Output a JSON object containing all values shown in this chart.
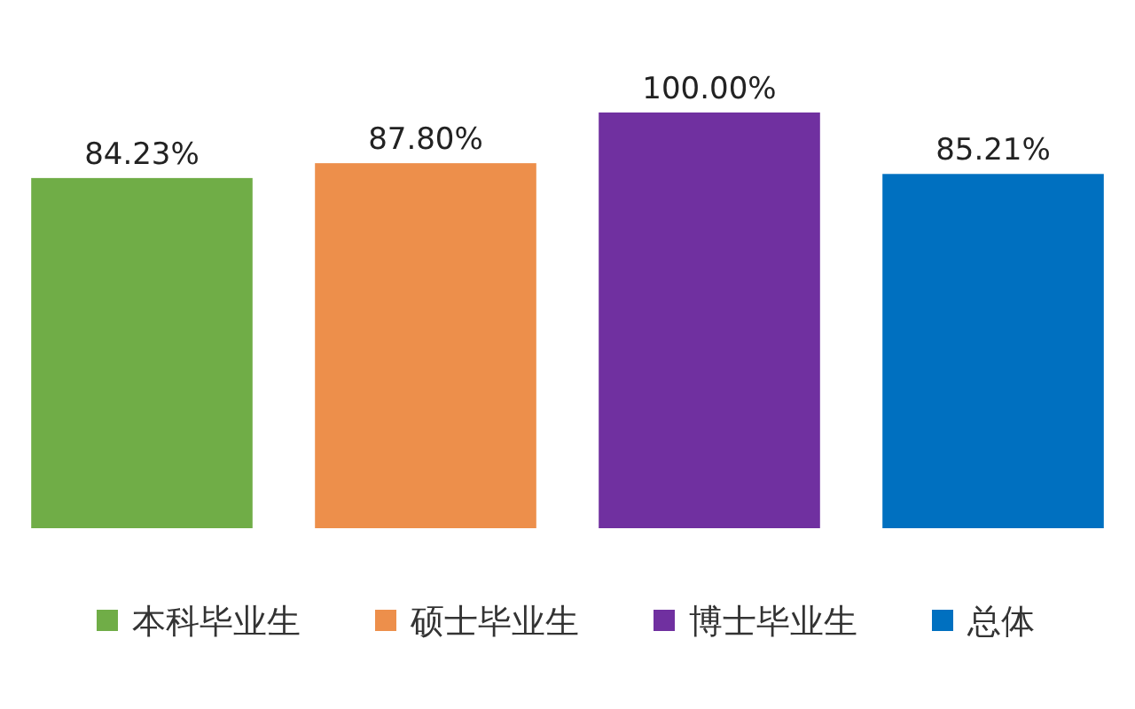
{
  "chart_data": {
    "type": "bar",
    "categories": [
      null
    ],
    "series": [
      {
        "name": "本科毕业生",
        "color": "#70ad47",
        "values": [
          84.23
        ],
        "value_labels": [
          "84.23%"
        ]
      },
      {
        "name": "硕士毕业生",
        "color": "#ed8f4b",
        "values": [
          87.8
        ],
        "value_labels": [
          "87.80%"
        ]
      },
      {
        "name": "博士毕业生",
        "color": "#7030a0",
        "values": [
          100
        ],
        "value_labels": [
          "100.00%"
        ]
      },
      {
        "name": "总体",
        "color": "#0070c0",
        "values": [
          85.21
        ],
        "value_labels": [
          "85.21%"
        ]
      }
    ],
    "legend": "bottom"
  }
}
